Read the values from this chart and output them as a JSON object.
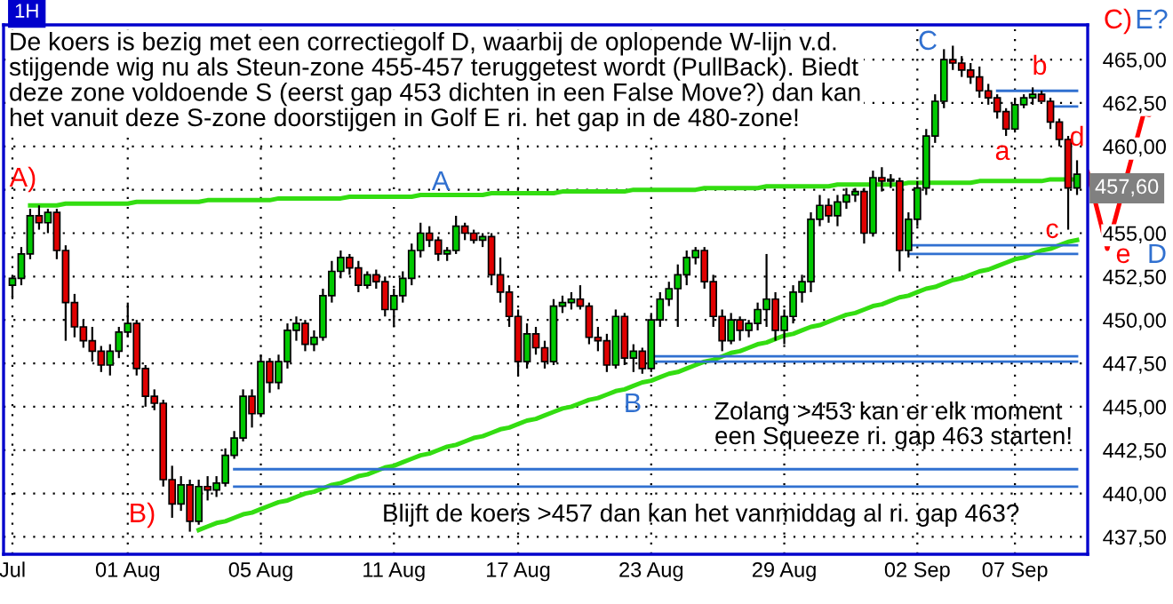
{
  "chart_data": {
    "type": "candlestick",
    "title": "1H",
    "categories": [
      "Jul",
      null,
      null,
      null,
      null,
      null,
      null,
      null,
      null,
      null,
      null,
      null,
      null,
      "01 Aug",
      null,
      null,
      null,
      null,
      null,
      null,
      null,
      null,
      null,
      null,
      null,
      null,
      null,
      null,
      "05 Aug",
      null,
      null,
      null,
      null,
      null,
      null,
      null,
      null,
      null,
      null,
      null,
      null,
      null,
      null,
      "11 Aug",
      null,
      null,
      null,
      null,
      null,
      null,
      null,
      null,
      null,
      null,
      null,
      null,
      null,
      "17 Aug",
      null,
      null,
      null,
      null,
      null,
      null,
      null,
      null,
      null,
      null,
      null,
      null,
      null,
      null,
      "23 Aug",
      null,
      null,
      null,
      null,
      null,
      null,
      null,
      null,
      null,
      null,
      null,
      null,
      null,
      null,
      "29 Aug",
      null,
      null,
      null,
      null,
      null,
      null,
      null,
      null,
      null,
      null,
      null,
      null,
      null,
      null,
      "02 Sep",
      null,
      null,
      null,
      null,
      null,
      null,
      null,
      null,
      null,
      null,
      "07 Sep",
      null,
      null,
      null,
      null,
      null,
      null,
      null
    ],
    "ohlc": [
      [
        452.0,
        452.6,
        451.2,
        452.4
      ],
      [
        452.4,
        454.2,
        452.0,
        453.8
      ],
      [
        453.8,
        456.4,
        453.5,
        456.0
      ],
      [
        456.0,
        456.6,
        455.2,
        455.6
      ],
      [
        455.6,
        456.4,
        455.0,
        456.2
      ],
      [
        456.2,
        456.4,
        453.5,
        454.0
      ],
      [
        454.0,
        454.3,
        448.8,
        451.0
      ],
      [
        451.0,
        451.5,
        449.0,
        449.6
      ],
      [
        449.6,
        450.0,
        448.4,
        448.8
      ],
      [
        448.8,
        449.6,
        447.6,
        448.2
      ],
      [
        448.2,
        448.5,
        447.0,
        447.4
      ],
      [
        447.4,
        448.6,
        446.8,
        448.2
      ],
      [
        448.2,
        449.6,
        447.8,
        449.3
      ],
      [
        449.3,
        451.0,
        449.0,
        449.8
      ],
      [
        449.8,
        450.0,
        446.8,
        447.2
      ],
      [
        447.2,
        447.4,
        445.0,
        445.6
      ],
      [
        445.6,
        446.0,
        444.8,
        445.2
      ],
      [
        445.2,
        445.4,
        440.4,
        440.8
      ],
      [
        440.8,
        441.6,
        438.6,
        439.4
      ],
      [
        439.4,
        441.0,
        439.0,
        440.5
      ],
      [
        440.5,
        440.8,
        437.8,
        438.4
      ],
      [
        438.4,
        440.8,
        438.2,
        440.4
      ],
      [
        440.4,
        441.0,
        439.6,
        440.2
      ],
      [
        440.2,
        441.0,
        439.8,
        440.6
      ],
      [
        440.6,
        442.6,
        440.4,
        442.2
      ],
      [
        442.2,
        443.6,
        442.0,
        443.2
      ],
      [
        443.2,
        446.0,
        443.0,
        445.6
      ],
      [
        445.6,
        446.0,
        443.8,
        444.6
      ],
      [
        444.6,
        448.0,
        444.4,
        447.6
      ],
      [
        447.6,
        447.8,
        445.8,
        446.4
      ],
      [
        446.4,
        448.0,
        446.0,
        447.6
      ],
      [
        447.6,
        449.8,
        447.2,
        449.4
      ],
      [
        449.4,
        450.2,
        448.8,
        449.8
      ],
      [
        449.8,
        450.0,
        448.2,
        448.6
      ],
      [
        448.6,
        449.4,
        448.2,
        449.0
      ],
      [
        449.0,
        451.8,
        448.8,
        451.4
      ],
      [
        451.4,
        453.4,
        451.0,
        452.8
      ],
      [
        452.8,
        454.0,
        452.4,
        453.6
      ],
      [
        453.6,
        453.8,
        452.6,
        453.0
      ],
      [
        453.0,
        453.4,
        451.6,
        452.0
      ],
      [
        452.0,
        452.8,
        451.8,
        452.6
      ],
      [
        452.6,
        452.9,
        451.8,
        452.2
      ],
      [
        452.2,
        452.5,
        450.2,
        450.6
      ],
      [
        450.6,
        451.8,
        449.6,
        451.4
      ],
      [
        451.4,
        452.8,
        451.0,
        452.4
      ],
      [
        452.4,
        454.4,
        452.0,
        454.0
      ],
      [
        454.0,
        455.6,
        453.6,
        455.0
      ],
      [
        455.0,
        455.4,
        454.2,
        454.6
      ],
      [
        454.6,
        454.8,
        453.4,
        453.8
      ],
      [
        453.8,
        454.2,
        453.4,
        454.0
      ],
      [
        454.0,
        456.0,
        453.8,
        455.4
      ],
      [
        455.4,
        455.6,
        454.6,
        455.0
      ],
      [
        455.0,
        455.2,
        454.4,
        454.6
      ],
      [
        454.6,
        455.0,
        454.2,
        454.8
      ],
      [
        454.8,
        455.0,
        452.0,
        452.6
      ],
      [
        452.6,
        453.6,
        451.0,
        451.6
      ],
      [
        451.6,
        452.0,
        449.6,
        450.2
      ],
      [
        450.2,
        450.6,
        446.8,
        447.6
      ],
      [
        447.6,
        449.8,
        447.2,
        449.2
      ],
      [
        449.2,
        449.6,
        448.0,
        448.4
      ],
      [
        448.4,
        448.8,
        447.2,
        447.6
      ],
      [
        447.6,
        451.2,
        447.4,
        450.8
      ],
      [
        450.8,
        451.4,
        450.4,
        451.0
      ],
      [
        451.0,
        451.6,
        450.6,
        451.2
      ],
      [
        451.2,
        452.0,
        450.6,
        450.8
      ],
      [
        450.8,
        451.0,
        448.6,
        449.0
      ],
      [
        449.0,
        449.6,
        448.2,
        448.8
      ],
      [
        448.8,
        449.2,
        447.0,
        447.4
      ],
      [
        447.4,
        450.6,
        447.2,
        450.2
      ],
      [
        450.2,
        450.4,
        447.4,
        447.8
      ],
      [
        447.8,
        448.6,
        447.0,
        448.2
      ],
      [
        448.2,
        448.4,
        446.9,
        447.2
      ],
      [
        447.2,
        450.4,
        447.0,
        450.0
      ],
      [
        450.0,
        451.6,
        449.6,
        451.2
      ],
      [
        451.2,
        452.2,
        450.8,
        451.8
      ],
      [
        451.8,
        453.2,
        449.6,
        452.6
      ],
      [
        452.6,
        454.0,
        452.0,
        453.6
      ],
      [
        453.6,
        454.2,
        453.2,
        454.0
      ],
      [
        454.0,
        454.2,
        451.8,
        452.2
      ],
      [
        452.2,
        452.6,
        449.6,
        450.2
      ],
      [
        450.2,
        450.6,
        448.2,
        448.8
      ],
      [
        448.8,
        450.4,
        448.6,
        450.0
      ],
      [
        450.0,
        450.2,
        448.8,
        449.4
      ],
      [
        449.4,
        450.0,
        449.0,
        449.8
      ],
      [
        449.8,
        451.0,
        449.4,
        450.6
      ],
      [
        450.6,
        453.8,
        449.6,
        451.2
      ],
      [
        451.2,
        451.6,
        448.8,
        449.4
      ],
      [
        449.4,
        450.6,
        448.6,
        450.2
      ],
      [
        450.2,
        452.0,
        449.8,
        451.6
      ],
      [
        451.6,
        452.6,
        451.0,
        452.2
      ],
      [
        452.2,
        456.2,
        451.6,
        455.8
      ],
      [
        455.8,
        457.2,
        455.4,
        456.6
      ],
      [
        456.6,
        457.0,
        455.6,
        456.0
      ],
      [
        456.0,
        457.2,
        455.4,
        456.8
      ],
      [
        456.8,
        457.6,
        456.4,
        457.2
      ],
      [
        457.2,
        457.6,
        456.8,
        457.4
      ],
      [
        457.4,
        457.6,
        454.4,
        455.0
      ],
      [
        455.0,
        458.6,
        454.8,
        458.2
      ],
      [
        458.2,
        458.8,
        457.4,
        458.0
      ],
      [
        458.0,
        458.4,
        457.6,
        458.1
      ],
      [
        458.0,
        458.2,
        452.8,
        454.0
      ],
      [
        454.0,
        456.2,
        453.6,
        455.8
      ],
      [
        455.8,
        458.0,
        455.4,
        457.6
      ],
      [
        457.6,
        461.0,
        457.2,
        460.6
      ],
      [
        460.6,
        463.0,
        460.2,
        462.6
      ],
      [
        462.6,
        465.6,
        462.2,
        465.0
      ],
      [
        465.0,
        465.8,
        464.4,
        464.8
      ],
      [
        464.8,
        465.2,
        464.0,
        464.4
      ],
      [
        464.4,
        464.8,
        463.6,
        464.0
      ],
      [
        464.0,
        464.6,
        462.8,
        463.2
      ],
      [
        463.2,
        463.6,
        462.4,
        462.8
      ],
      [
        462.8,
        463.0,
        461.6,
        462.0
      ],
      [
        462.0,
        462.2,
        460.6,
        461.0
      ],
      [
        461.0,
        462.8,
        460.8,
        462.4
      ],
      [
        462.4,
        463.0,
        462.2,
        462.8
      ],
      [
        462.8,
        463.4,
        462.4,
        463.0
      ],
      [
        463.0,
        463.2,
        462.6,
        462.6
      ],
      [
        462.6,
        462.8,
        461.0,
        461.4
      ],
      [
        461.4,
        461.6,
        460.0,
        460.4
      ],
      [
        460.4,
        460.6,
        455.2,
        457.6
      ],
      [
        457.6,
        459.2,
        457.2,
        458.4
      ]
    ],
    "colors": [
      "#00c800",
      "#00c800",
      "#00c800",
      "#e00000",
      "#00c800",
      "#e00000",
      "#e00000",
      "#e00000",
      "#e00000",
      "#e00000",
      "#e00000",
      "#00c800",
      "#00c800",
      "#00c800",
      "#e00000",
      "#e00000",
      "#e00000",
      "#e00000",
      "#e00000",
      "#00c800",
      "#e00000",
      "#00c800",
      "#e00000",
      "#00c800",
      "#00c800",
      "#00c800",
      "#00c800",
      "#e00000",
      "#00c800",
      "#e00000",
      "#00c800",
      "#00c800",
      "#00c800",
      "#e00000",
      "#00c800",
      "#00c800",
      "#00c800",
      "#00c800",
      "#e00000",
      "#e00000",
      "#00c800",
      "#e00000",
      "#e00000",
      "#00c800",
      "#00c800",
      "#00c800",
      "#00c800",
      "#e00000",
      "#e00000",
      "#00c800",
      "#00c800",
      "#e00000",
      "#e00000",
      "#00c800",
      "#e00000",
      "#e00000",
      "#e00000",
      "#e00000",
      "#00c800",
      "#e00000",
      "#e00000",
      "#00c800",
      "#00c800",
      "#00c800",
      "#e00000",
      "#e00000",
      "#e00000",
      "#e00000",
      "#00c800",
      "#e00000",
      "#00c800",
      "#e00000",
      "#00c800",
      "#00c800",
      "#00c800",
      "#00c800",
      "#00c800",
      "#00c800",
      "#e00000",
      "#e00000",
      "#e00000",
      "#00c800",
      "#e00000",
      "#00c800",
      "#00c800",
      "#00c800",
      "#e00000",
      "#00c800",
      "#00c800",
      "#00c800",
      "#00c800",
      "#00c800",
      "#e00000",
      "#00c800",
      "#00c800",
      "#00c800",
      "#e00000",
      "#00c800",
      "#e00000",
      "#00c800",
      "#e00000",
      "#00c800",
      "#00c800",
      "#00c800",
      "#00c800",
      "#00c800",
      "#e00000",
      "#e00000",
      "#e00000",
      "#e00000",
      "#e00000",
      "#e00000",
      "#e00000",
      "#00c800",
      "#00c800",
      "#00c800",
      "#e00000",
      "#e00000",
      "#e00000",
      "#e00000",
      "#00c800"
    ],
    "series": [
      {
        "type": "line",
        "color": "#33dd11",
        "values": [
          null,
          null,
          456.6,
          456.6,
          456.6,
          456.6,
          456.7,
          456.7,
          456.7,
          456.7,
          456.7,
          456.7,
          456.7,
          456.7,
          456.8,
          456.8,
          456.8,
          456.8,
          456.8,
          456.8,
          456.8,
          456.8,
          456.9,
          456.9,
          456.9,
          456.9,
          456.9,
          456.9,
          456.9,
          456.9,
          457.0,
          457.0,
          457.0,
          457.0,
          457.0,
          457.0,
          457.0,
          457.0,
          457.1,
          457.1,
          457.1,
          457.1,
          457.1,
          457.1,
          457.1,
          457.1,
          457.2,
          457.2,
          457.2,
          457.2,
          457.2,
          457.2,
          457.2,
          457.2,
          457.3,
          457.3,
          457.3,
          457.3,
          457.3,
          457.3,
          457.3,
          457.3,
          457.4,
          457.4,
          457.4,
          457.4,
          457.4,
          457.4,
          457.4,
          457.4,
          457.5,
          457.5,
          457.5,
          457.5,
          457.5,
          457.5,
          457.5,
          457.5,
          457.6,
          457.6,
          457.6,
          457.6,
          457.6,
          457.6,
          457.6,
          457.7,
          457.7,
          457.7,
          457.7,
          457.7,
          457.7,
          457.7,
          457.7,
          457.8,
          457.8,
          457.8,
          457.8,
          457.8,
          457.8,
          457.8,
          457.8,
          457.9,
          457.9,
          457.9,
          457.9,
          457.9,
          457.9,
          457.9,
          457.9,
          458.0,
          458.0,
          458.0,
          458.0,
          458.0,
          458.0,
          458.0,
          458.0,
          458.1,
          458.1,
          458.1,
          458.1
        ]
      },
      {
        "type": "line",
        "color": "#33dd11",
        "values": [
          null,
          null,
          null,
          null,
          null,
          null,
          null,
          null,
          null,
          null,
          null,
          null,
          null,
          null,
          null,
          null,
          null,
          null,
          null,
          null,
          null,
          437.9,
          438.1,
          438.3,
          438.4,
          438.6,
          438.8,
          438.9,
          439.1,
          439.3,
          439.5,
          439.6,
          439.8,
          440.0,
          440.1,
          440.3,
          440.5,
          440.6,
          440.8,
          441.0,
          441.1,
          441.3,
          441.5,
          441.6,
          441.8,
          442.0,
          442.2,
          442.3,
          442.5,
          442.7,
          442.8,
          443.0,
          443.2,
          443.3,
          443.5,
          443.7,
          443.8,
          444.0,
          444.2,
          444.3,
          444.5,
          444.7,
          444.9,
          445.0,
          445.2,
          445.4,
          445.5,
          445.7,
          445.9,
          446.0,
          446.2,
          446.4,
          446.5,
          446.7,
          446.9,
          447.0,
          447.2,
          447.4,
          447.6,
          447.7,
          447.9,
          448.1,
          448.2,
          448.4,
          448.6,
          448.7,
          448.9,
          449.1,
          449.2,
          449.4,
          449.6,
          449.7,
          449.9,
          450.1,
          450.3,
          450.4,
          450.6,
          450.8,
          450.9,
          451.1,
          451.3,
          451.4,
          451.6,
          451.8,
          451.9,
          452.1,
          452.3,
          452.4,
          452.6,
          452.8,
          452.9,
          453.1,
          453.3,
          453.5,
          453.6,
          453.8,
          454.0,
          454.1,
          454.3,
          454.5,
          454.6
        ]
      },
      {
        "type": "line",
        "color": "#3070d0",
        "values": [
          null,
          null,
          null,
          null,
          null,
          null,
          null,
          null,
          null,
          null,
          null,
          null,
          null,
          null,
          null,
          null,
          null,
          null,
          null,
          null,
          null,
          null,
          null,
          null,
          null,
          441.4,
          441.4,
          441.4,
          441.4,
          441.4,
          441.4,
          441.4,
          441.4,
          441.4,
          441.4,
          441.4,
          441.4,
          441.4,
          441.4,
          441.4,
          441.4,
          441.4,
          441.4,
          441.4,
          441.4,
          441.4,
          441.4,
          441.4,
          441.4,
          441.4,
          441.4,
          441.4,
          441.4,
          441.4,
          441.4,
          441.4,
          441.4,
          441.4,
          441.4,
          441.4,
          441.4,
          441.4,
          441.4,
          441.4,
          441.4,
          441.4,
          441.4,
          441.4,
          441.4,
          441.4,
          441.4,
          441.4,
          441.4,
          441.4,
          441.4,
          441.4,
          441.4,
          441.4,
          441.4,
          441.4,
          441.4,
          441.4,
          441.4,
          441.4,
          441.4,
          441.4,
          441.4,
          441.4,
          441.4,
          441.4,
          441.4,
          441.4,
          441.4,
          441.4,
          441.4,
          441.4,
          441.4,
          441.4,
          441.4,
          441.4,
          441.4,
          441.4,
          441.4,
          441.4,
          441.4,
          441.4,
          441.4,
          441.4,
          441.4,
          441.4,
          441.4,
          441.4,
          441.4,
          441.4,
          441.4,
          441.4,
          441.4,
          441.4,
          441.4,
          441.4,
          441.4
        ]
      },
      {
        "type": "line",
        "color": "#3070d0",
        "values": [
          null,
          null,
          null,
          null,
          null,
          null,
          null,
          null,
          null,
          null,
          null,
          null,
          null,
          null,
          null,
          null,
          null,
          null,
          null,
          null,
          null,
          null,
          null,
          null,
          null,
          440.4,
          440.4,
          440.4,
          440.4,
          440.4,
          440.4,
          440.4,
          440.4,
          440.4,
          440.4,
          440.4,
          440.4,
          440.4,
          440.4,
          440.4,
          440.4,
          440.4,
          440.4,
          440.4,
          440.4,
          440.4,
          440.4,
          440.4,
          440.4,
          440.4,
          440.4,
          440.4,
          440.4,
          440.4,
          440.4,
          440.4,
          440.4,
          440.4,
          440.4,
          440.4,
          440.4,
          440.4,
          440.4,
          440.4,
          440.4,
          440.4,
          440.4,
          440.4,
          440.4,
          440.4,
          440.4,
          440.4,
          440.4,
          440.4,
          440.4,
          440.4,
          440.4,
          440.4,
          440.4,
          440.4,
          440.4,
          440.4,
          440.4,
          440.4,
          440.4,
          440.4,
          440.4,
          440.4,
          440.4,
          440.4,
          440.4,
          440.4,
          440.4,
          440.4,
          440.4,
          440.4,
          440.4,
          440.4,
          440.4,
          440.4,
          440.4,
          440.4,
          440.4,
          440.4,
          440.4,
          440.4,
          440.4,
          440.4,
          440.4,
          440.4,
          440.4,
          440.4,
          440.4,
          440.4,
          440.4,
          440.4,
          440.4,
          440.4,
          440.4,
          440.4,
          440.4
        ]
      },
      {
        "type": "line",
        "color": "#3070d0",
        "values": [
          null,
          null,
          null,
          null,
          null,
          null,
          null,
          null,
          null,
          null,
          null,
          null,
          null,
          null,
          null,
          null,
          null,
          null,
          null,
          null,
          null,
          null,
          null,
          null,
          null,
          null,
          null,
          null,
          null,
          null,
          null,
          null,
          null,
          null,
          null,
          null,
          null,
          null,
          null,
          null,
          null,
          null,
          null,
          null,
          null,
          null,
          null,
          null,
          null,
          null,
          null,
          null,
          null,
          null,
          null,
          null,
          null,
          null,
          null,
          null,
          null,
          null,
          null,
          null,
          null,
          null,
          null,
          null,
          null,
          null,
          null,
          null,
          447.9,
          447.9,
          447.9,
          447.9,
          447.9,
          447.9,
          447.9,
          447.9,
          447.9,
          447.9,
          447.9,
          447.9,
          447.9,
          447.9,
          447.9,
          447.9,
          447.9,
          447.9,
          447.9,
          447.9,
          447.9,
          447.9,
          447.9,
          447.9,
          447.9,
          447.9,
          447.9,
          447.9,
          447.9,
          447.9,
          447.9,
          447.9,
          447.9,
          447.9,
          447.9,
          447.9,
          447.9,
          447.9,
          447.9,
          447.9,
          447.9,
          447.9,
          447.9,
          447.9,
          447.9,
          447.9,
          447.9,
          447.9,
          447.9
        ]
      },
      {
        "type": "line",
        "color": "#3070d0",
        "values": [
          null,
          null,
          null,
          null,
          null,
          null,
          null,
          null,
          null,
          null,
          null,
          null,
          null,
          null,
          null,
          null,
          null,
          null,
          null,
          null,
          null,
          null,
          null,
          null,
          null,
          null,
          null,
          null,
          null,
          null,
          null,
          null,
          null,
          null,
          null,
          null,
          null,
          null,
          null,
          null,
          null,
          null,
          null,
          null,
          null,
          null,
          null,
          null,
          null,
          null,
          null,
          null,
          null,
          null,
          null,
          null,
          null,
          null,
          null,
          null,
          null,
          null,
          null,
          null,
          null,
          null,
          null,
          null,
          null,
          null,
          null,
          null,
          447.6,
          447.6,
          447.6,
          447.6,
          447.6,
          447.6,
          447.6,
          447.6,
          447.6,
          447.6,
          447.6,
          447.6,
          447.6,
          447.6,
          447.6,
          447.6,
          447.6,
          447.6,
          447.6,
          447.6,
          447.6,
          447.6,
          447.6,
          447.6,
          447.6,
          447.6,
          447.6,
          447.6,
          447.6,
          447.6,
          447.6,
          447.6,
          447.6,
          447.6,
          447.6,
          447.6,
          447.6,
          447.6,
          447.6,
          447.6,
          447.6,
          447.6,
          447.6,
          447.6,
          447.6,
          447.6,
          447.6,
          447.6,
          447.6
        ]
      },
      {
        "type": "line",
        "color": "#3070d0",
        "values": [
          null,
          null,
          null,
          null,
          null,
          null,
          null,
          null,
          null,
          null,
          null,
          null,
          null,
          null,
          null,
          null,
          null,
          null,
          null,
          null,
          null,
          null,
          null,
          null,
          null,
          null,
          null,
          null,
          null,
          null,
          null,
          null,
          null,
          null,
          null,
          null,
          null,
          null,
          null,
          null,
          null,
          null,
          null,
          null,
          null,
          null,
          null,
          null,
          null,
          null,
          null,
          null,
          null,
          null,
          null,
          null,
          null,
          null,
          null,
          null,
          null,
          null,
          null,
          null,
          null,
          null,
          null,
          null,
          null,
          null,
          null,
          null,
          null,
          null,
          null,
          null,
          null,
          null,
          null,
          null,
          null,
          null,
          null,
          null,
          null,
          null,
          null,
          null,
          null,
          null,
          null,
          null,
          null,
          null,
          null,
          null,
          null,
          null,
          null,
          null,
          null,
          454.3,
          454.3,
          454.3,
          454.3,
          454.3,
          454.3,
          454.3,
          454.3,
          454.3,
          454.3,
          454.3,
          454.3,
          454.3,
          454.3,
          454.3,
          454.3,
          454.3,
          454.3,
          454.3,
          454.3
        ]
      },
      {
        "type": "line",
        "color": "#3070d0",
        "values": [
          null,
          null,
          null,
          null,
          null,
          null,
          null,
          null,
          null,
          null,
          null,
          null,
          null,
          null,
          null,
          null,
          null,
          null,
          null,
          null,
          null,
          null,
          null,
          null,
          null,
          null,
          null,
          null,
          null,
          null,
          null,
          null,
          null,
          null,
          null,
          null,
          null,
          null,
          null,
          null,
          null,
          null,
          null,
          null,
          null,
          null,
          null,
          null,
          null,
          null,
          null,
          null,
          null,
          null,
          null,
          null,
          null,
          null,
          null,
          null,
          null,
          null,
          null,
          null,
          null,
          null,
          null,
          null,
          null,
          null,
          null,
          null,
          null,
          null,
          null,
          null,
          null,
          null,
          null,
          null,
          null,
          null,
          null,
          null,
          null,
          null,
          null,
          null,
          null,
          null,
          null,
          null,
          null,
          null,
          null,
          null,
          null,
          null,
          null,
          null,
          null,
          453.8,
          453.8,
          453.8,
          453.8,
          453.8,
          453.8,
          453.8,
          453.8,
          453.8,
          453.8,
          453.8,
          453.8,
          453.8,
          453.8,
          453.8,
          453.8,
          453.8,
          453.8,
          453.8,
          453.8
        ]
      },
      {
        "type": "line",
        "color": "#3070d0",
        "values": [
          null,
          null,
          null,
          null,
          null,
          null,
          null,
          null,
          null,
          null,
          null,
          null,
          null,
          null,
          null,
          null,
          null,
          null,
          null,
          null,
          null,
          null,
          null,
          null,
          null,
          null,
          null,
          null,
          null,
          null,
          null,
          null,
          null,
          null,
          null,
          null,
          null,
          null,
          null,
          null,
          null,
          null,
          null,
          null,
          null,
          null,
          null,
          null,
          null,
          null,
          null,
          null,
          null,
          null,
          null,
          null,
          null,
          null,
          null,
          null,
          null,
          null,
          null,
          null,
          null,
          null,
          null,
          null,
          null,
          null,
          null,
          null,
          null,
          null,
          null,
          null,
          null,
          null,
          null,
          null,
          null,
          null,
          null,
          null,
          null,
          null,
          null,
          null,
          null,
          null,
          null,
          null,
          null,
          null,
          null,
          null,
          null,
          null,
          null,
          null,
          null,
          null,
          null,
          null,
          null,
          null,
          null,
          null,
          null,
          null,
          null,
          463.2,
          463.2,
          463.2,
          463.2,
          463.2,
          463.2,
          463.2,
          463.2,
          463.2,
          463.2
        ]
      },
      {
        "type": "line",
        "color": "#3070d0",
        "values": [
          null,
          null,
          null,
          null,
          null,
          null,
          null,
          null,
          null,
          null,
          null,
          null,
          null,
          null,
          null,
          null,
          null,
          null,
          null,
          null,
          null,
          null,
          null,
          null,
          null,
          null,
          null,
          null,
          null,
          null,
          null,
          null,
          null,
          null,
          null,
          null,
          null,
          null,
          null,
          null,
          null,
          null,
          null,
          null,
          null,
          null,
          null,
          null,
          null,
          null,
          null,
          null,
          null,
          null,
          null,
          null,
          null,
          null,
          null,
          null,
          null,
          null,
          null,
          null,
          null,
          null,
          null,
          null,
          null,
          null,
          null,
          null,
          null,
          null,
          null,
          null,
          null,
          null,
          null,
          null,
          null,
          null,
          null,
          null,
          null,
          null,
          null,
          null,
          null,
          null,
          null,
          null,
          null,
          null,
          null,
          null,
          null,
          null,
          null,
          null,
          null,
          null,
          null,
          null,
          null,
          null,
          null,
          null,
          null,
          null,
          null,
          null,
          null,
          null,
          null,
          null,
          null,
          462.3,
          462.3,
          462.3,
          462.3
        ]
      }
    ],
    "ylim": [
      436.5,
      467
    ],
    "yticks": [
      {
        "value": 437.5,
        "label": "437,50"
      },
      {
        "value": 440,
        "label": "440,00"
      },
      {
        "value": 442.5,
        "label": "442,50"
      },
      {
        "value": 445,
        "label": "445,00"
      },
      {
        "value": 447.5,
        "label": "447,50"
      },
      {
        "value": 450,
        "label": "450,00"
      },
      {
        "value": 452.5,
        "label": "452,50"
      },
      {
        "value": 455,
        "label": "455,00"
      },
      {
        "value": 457.5,
        "label": null
      },
      {
        "value": 460,
        "label": "460,00"
      },
      {
        "value": 462.5,
        "label": "462,50"
      },
      {
        "value": 465,
        "label": "465,00"
      }
    ],
    "grid": true,
    "annotations": [
      "De koers is bezig met een correctiegolf D, waarbij de oplopende W-lijn v.d.\nstijgende wig nu als Steun-zone 455-457 teruggetest wordt (PullBack). Biedt\ndeze zone voldoende S (eerst gap 453 dichten in een False Move?) dan kan\nhet vanuit deze S-zone doorstijgen in Golf E ri. het gap in de 480-zone!",
      "Zolang >453 kan er elk moment\neen Squeeze ri. gap 463 starten!",
      "Blijft de koers >457 dan kan het vanmiddag al ri. gap 463?",
      "A)",
      "B)",
      "A",
      "B",
      "C",
      "a",
      "b",
      "c",
      "d",
      "e",
      "D",
      "C)",
      "E?",
      "457,60"
    ]
  }
}
